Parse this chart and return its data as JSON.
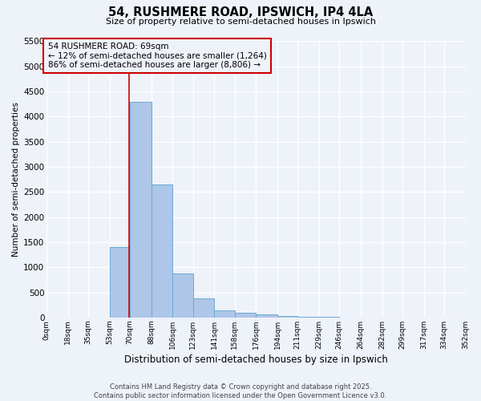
{
  "title": "54, RUSHMERE ROAD, IPSWICH, IP4 4LA",
  "subtitle": "Size of property relative to semi-detached houses in Ipswich",
  "xlabel": "Distribution of semi-detached houses by size in Ipswich",
  "ylabel": "Number of semi-detached properties",
  "bin_edges": [
    0,
    18,
    35,
    53,
    70,
    88,
    106,
    123,
    141,
    158,
    176,
    194,
    211,
    229,
    246,
    264,
    282,
    299,
    317,
    334,
    352
  ],
  "bin_labels": [
    "0sqm",
    "18sqm",
    "35sqm",
    "53sqm",
    "70sqm",
    "88sqm",
    "106sqm",
    "123sqm",
    "141sqm",
    "158sqm",
    "176sqm",
    "194sqm",
    "211sqm",
    "229sqm",
    "246sqm",
    "264sqm",
    "282sqm",
    "299sqm",
    "317sqm",
    "334sqm",
    "352sqm"
  ],
  "counts": [
    0,
    0,
    0,
    1400,
    4300,
    2650,
    880,
    380,
    150,
    100,
    60,
    30,
    15,
    10,
    5,
    3,
    2,
    1,
    1,
    0
  ],
  "property_size": 69,
  "property_label": "54 RUSHMERE ROAD: 69sqm",
  "annotation_line1": "← 12% of semi-detached houses are smaller (1,264)",
  "annotation_line2": "86% of semi-detached houses are larger (8,806) →",
  "bar_color": "#aec6e8",
  "bar_edge_color": "#6aaad4",
  "vline_color": "#cc0000",
  "box_edge_color": "#cc0000",
  "background_color": "#eef2f9",
  "grid_color": "#ffffff",
  "ylim": [
    0,
    5500
  ],
  "yticks": [
    0,
    500,
    1000,
    1500,
    2000,
    2500,
    3000,
    3500,
    4000,
    4500,
    5000,
    5500
  ],
  "footer_line1": "Contains HM Land Registry data © Crown copyright and database right 2025.",
  "footer_line2": "Contains public sector information licensed under the Open Government Licence v3.0."
}
